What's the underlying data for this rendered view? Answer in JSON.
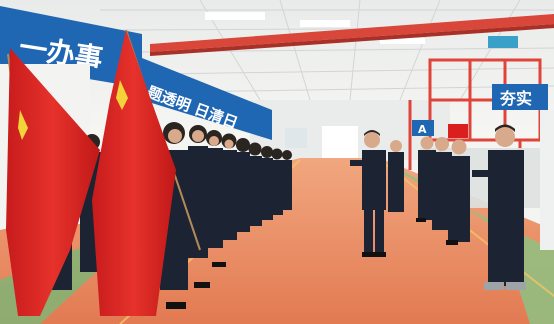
{
  "signs": {
    "left_banner_text": "一办事",
    "middle_banner_text": "题透明 日清日",
    "right_sign_text": "夯实",
    "small_sign_text": "A"
  },
  "colors": {
    "banner_blue": "#1f66b3",
    "flag_red": "#d9201f",
    "floor_orange": "#e7855f",
    "uniform_navy": "#1c2434",
    "wall": "#eef0ef",
    "equipment_red": "#e0433a"
  }
}
